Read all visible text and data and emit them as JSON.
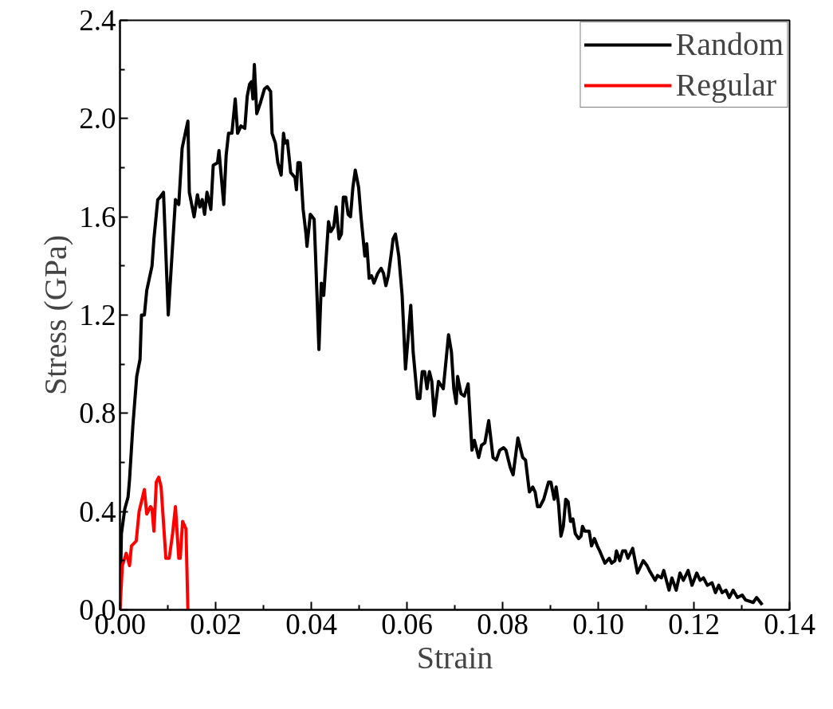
{
  "chart_data": {
    "type": "line",
    "xlabel": "Strain",
    "ylabel": "Stress (GPa)",
    "xlim": [
      0,
      0.14
    ],
    "ylim": [
      0,
      2.4
    ],
    "xticks": [
      {
        "value": 0,
        "label": "0.00"
      },
      {
        "value": 0.02,
        "label": "0.02"
      },
      {
        "value": 0.04,
        "label": "0.04"
      },
      {
        "value": 0.06,
        "label": "0.06"
      },
      {
        "value": 0.08,
        "label": "0.08"
      },
      {
        "value": 0.1,
        "label": "0.10"
      },
      {
        "value": 0.12,
        "label": "0.12"
      },
      {
        "value": 0.14,
        "label": "0.14"
      }
    ],
    "yticks": [
      {
        "value": 0,
        "label": "0.0"
      },
      {
        "value": 0.4,
        "label": "0.4"
      },
      {
        "value": 0.8,
        "label": "0.8"
      },
      {
        "value": 1.2,
        "label": "1.2"
      },
      {
        "value": 1.6,
        "label": "1.6"
      },
      {
        "value": 2.0,
        "label": "2.0"
      },
      {
        "value": 2.4,
        "label": "2.4"
      }
    ],
    "grid": false,
    "legend": "top right",
    "marker": "none",
    "line_style": "solid",
    "series": [
      {
        "name": "Random",
        "color": "#000000",
        "x": [
          0,
          0.0003,
          0.001,
          0.0017,
          0.002,
          0.0027,
          0.0035,
          0.0042,
          0.0045,
          0.0051,
          0.0056,
          0.0067,
          0.0071,
          0.0079,
          0.0084,
          0.0091,
          0.0101,
          0.0116,
          0.0123,
          0.013,
          0.0142,
          0.0145,
          0.0155,
          0.0162,
          0.0167,
          0.0172,
          0.0177,
          0.0182,
          0.019,
          0.0195,
          0.0204,
          0.0207,
          0.0217,
          0.0222,
          0.0227,
          0.0234,
          0.0241,
          0.0246,
          0.0253,
          0.0261,
          0.0266,
          0.0271,
          0.0275,
          0.0278,
          0.0281,
          0.0286,
          0.0293,
          0.0302,
          0.0308,
          0.0315,
          0.0318,
          0.0325,
          0.033,
          0.0337,
          0.0342,
          0.0345,
          0.035,
          0.0357,
          0.0366,
          0.0369,
          0.0372,
          0.0377,
          0.0383,
          0.0389,
          0.0391,
          0.0398,
          0.0406,
          0.0409,
          0.0416,
          0.0421,
          0.0426,
          0.0436,
          0.0441,
          0.0447,
          0.0452,
          0.0458,
          0.0463,
          0.0467,
          0.0472,
          0.0477,
          0.0482,
          0.0487,
          0.0492,
          0.0499,
          0.0504,
          0.0509,
          0.0512,
          0.0516,
          0.0521,
          0.0526,
          0.0531,
          0.0539,
          0.0546,
          0.0551,
          0.0556,
          0.0561,
          0.0568,
          0.0571,
          0.0576,
          0.0583,
          0.059,
          0.0597,
          0.0608,
          0.0613,
          0.0622,
          0.0627,
          0.0632,
          0.0637,
          0.0642,
          0.0647,
          0.0652,
          0.0657,
          0.0666,
          0.0676,
          0.0687,
          0.0693,
          0.0698,
          0.0703,
          0.0706,
          0.0713,
          0.072,
          0.0728,
          0.0736,
          0.0741,
          0.075,
          0.0756,
          0.0763,
          0.0771,
          0.078,
          0.0787,
          0.0794,
          0.0802,
          0.0807,
          0.0816,
          0.0822,
          0.0832,
          0.0842,
          0.0848,
          0.0856,
          0.0863,
          0.0868,
          0.0873,
          0.0878,
          0.0886,
          0.0896,
          0.0901,
          0.0908,
          0.0912,
          0.0917,
          0.0922,
          0.0927,
          0.0932,
          0.0937,
          0.0942,
          0.0947,
          0.0952,
          0.0959,
          0.0964,
          0.0967,
          0.0972,
          0.0981,
          0.0986,
          0.0992,
          0.0998,
          0.1003,
          0.1014,
          0.1023,
          0.1028,
          0.1035,
          0.1038,
          0.1045,
          0.1051,
          0.1057,
          0.1062,
          0.1072,
          0.1082,
          0.1094,
          0.1102,
          0.1107,
          0.1119,
          0.1124,
          0.1132,
          0.1137,
          0.1148,
          0.1154,
          0.1163,
          0.1171,
          0.1178,
          0.1188,
          0.1196,
          0.1206,
          0.1213,
          0.122,
          0.1228,
          0.1238,
          0.1245,
          0.1252,
          0.1259,
          0.1267,
          0.1274,
          0.1282,
          0.1291,
          0.1301,
          0.1308,
          0.1324,
          0.1331,
          0.1343
        ],
        "values": [
          0,
          0.31,
          0.41,
          0.46,
          0.53,
          0.75,
          0.95,
          1.02,
          1.2,
          1.2,
          1.3,
          1.4,
          1.51,
          1.67,
          1.68,
          1.7,
          1.2,
          1.67,
          1.65,
          1.88,
          1.99,
          1.7,
          1.6,
          1.69,
          1.64,
          1.67,
          1.61,
          1.7,
          1.63,
          1.81,
          1.82,
          1.87,
          1.65,
          1.85,
          1.94,
          1.94,
          2.08,
          1.94,
          1.97,
          1.96,
          2.09,
          2.14,
          2.15,
          2.08,
          2.22,
          2.02,
          2.06,
          2.12,
          2.13,
          2.11,
          1.94,
          1.9,
          1.82,
          1.77,
          1.94,
          1.9,
          1.91,
          1.78,
          1.76,
          1.71,
          1.82,
          1.82,
          1.63,
          1.53,
          1.48,
          1.61,
          1.59,
          1.44,
          1.06,
          1.33,
          1.28,
          1.58,
          1.54,
          1.56,
          1.64,
          1.51,
          1.53,
          1.68,
          1.68,
          1.61,
          1.6,
          1.72,
          1.79,
          1.72,
          1.6,
          1.5,
          1.44,
          1.49,
          1.35,
          1.36,
          1.33,
          1.37,
          1.39,
          1.37,
          1.32,
          1.36,
          1.46,
          1.51,
          1.53,
          1.44,
          1.28,
          0.98,
          1.24,
          1.05,
          0.86,
          0.86,
          0.97,
          0.97,
          0.9,
          0.97,
          0.93,
          0.79,
          0.93,
          0.9,
          1.12,
          1.05,
          0.9,
          0.84,
          0.95,
          0.88,
          0.87,
          0.92,
          0.65,
          0.69,
          0.62,
          0.67,
          0.68,
          0.77,
          0.62,
          0.61,
          0.65,
          0.66,
          0.65,
          0.58,
          0.55,
          0.7,
          0.62,
          0.61,
          0.48,
          0.5,
          0.48,
          0.42,
          0.42,
          0.45,
          0.52,
          0.52,
          0.45,
          0.5,
          0.43,
          0.3,
          0.34,
          0.45,
          0.44,
          0.36,
          0.37,
          0.31,
          0.29,
          0.3,
          0.34,
          0.32,
          0.32,
          0.26,
          0.29,
          0.26,
          0.24,
          0.19,
          0.21,
          0.19,
          0.2,
          0.24,
          0.2,
          0.24,
          0.24,
          0.21,
          0.25,
          0.15,
          0.2,
          0.18,
          0.16,
          0.12,
          0.14,
          0.13,
          0.16,
          0.08,
          0.13,
          0.08,
          0.15,
          0.12,
          0.16,
          0.1,
          0.15,
          0.12,
          0.13,
          0.1,
          0.11,
          0.07,
          0.1,
          0.07,
          0.08,
          0.05,
          0.08,
          0.05,
          0.06,
          0.04,
          0.03,
          0.05,
          0.02
        ]
      },
      {
        "name": "Regular",
        "color": "#ff0000",
        "x": [
          0,
          0.0005,
          0.0013,
          0.002,
          0.0024,
          0.0034,
          0.004,
          0.0051,
          0.0056,
          0.0064,
          0.0067,
          0.0071,
          0.0076,
          0.0081,
          0.0086,
          0.0096,
          0.0103,
          0.011,
          0.0116,
          0.0123,
          0.0126,
          0.0131,
          0.0138,
          0.0142
        ],
        "values": [
          0,
          0.18,
          0.23,
          0.18,
          0.26,
          0.28,
          0.4,
          0.49,
          0.39,
          0.42,
          0.41,
          0.32,
          0.52,
          0.54,
          0.5,
          0.21,
          0.21,
          0.31,
          0.42,
          0.21,
          0.21,
          0.36,
          0.33,
          0
        ]
      }
    ]
  }
}
